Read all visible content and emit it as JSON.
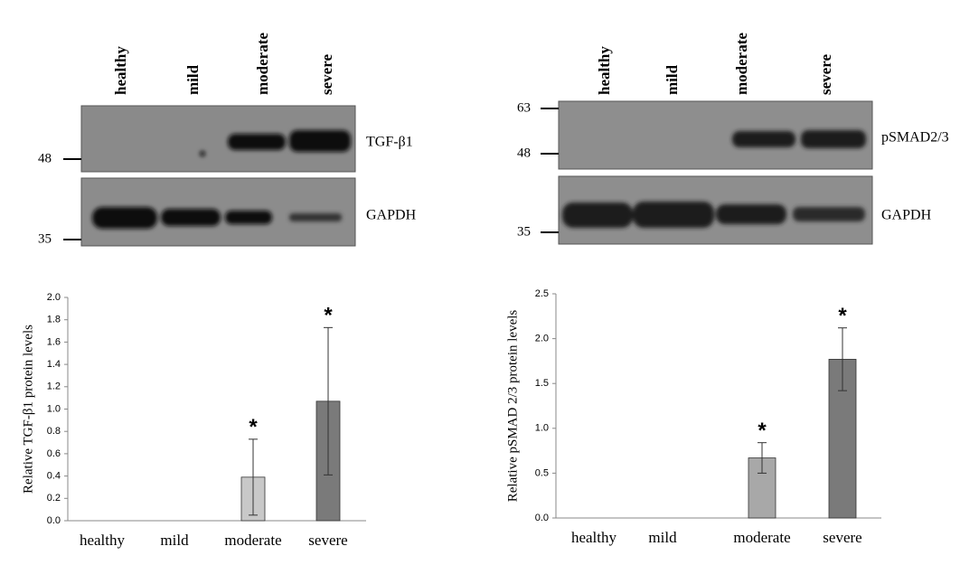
{
  "blots": [
    {
      "lanes": [
        "healthy",
        "mild",
        "moderate",
        "severe"
      ],
      "markers": [
        48,
        35
      ],
      "bands": [
        "TGF-β1",
        "GAPDH"
      ]
    },
    {
      "lanes": [
        "healthy",
        "mild",
        "moderate",
        "severe"
      ],
      "markers": [
        63,
        48,
        35
      ],
      "bands": [
        "pSMAD2/3",
        "GAPDH"
      ]
    }
  ],
  "chart_data": [
    {
      "type": "bar",
      "y_label": "Relative TGF-β1 protein levels",
      "categories": [
        "healthy",
        "mild",
        "moderate",
        "severe"
      ],
      "values": [
        0,
        0,
        0.39,
        1.07
      ],
      "errors": [
        0,
        0,
        0.34,
        0.66
      ],
      "colors": [
        "#c8c8c8",
        "#c8c8c8",
        "#c8c8c8",
        "#7a7a7a"
      ],
      "significance_labels": [
        null,
        null,
        "*",
        "*"
      ],
      "ylim": [
        0,
        2
      ],
      "yticks": [
        {
          "value": 0,
          "label": "0.0"
        },
        0.2,
        0.4,
        0.6,
        0.8,
        {
          "value": 1,
          "label": "1.0"
        },
        1.2,
        1.4,
        1.6,
        1.8,
        {
          "value": 2,
          "label": "2.0"
        }
      ]
    },
    {
      "type": "bar",
      "y_label": "Relative pSMAD 2/3 protein levels",
      "categories": [
        "healthy",
        "mild",
        "moderate",
        "severe"
      ],
      "values": [
        0,
        0,
        0.67,
        1.77
      ],
      "errors": [
        0,
        0,
        0.17,
        0.35
      ],
      "colors": [
        "#a8a8a8",
        "#a8a8a8",
        "#a8a8a8",
        "#7a7a7a"
      ],
      "significance_labels": [
        null,
        null,
        "*",
        "*"
      ],
      "ylim": [
        0,
        2.5
      ],
      "yticks": [
        {
          "value": 0,
          "label": "0.0"
        },
        0.5,
        {
          "value": 1,
          "label": "1.0"
        },
        1.5,
        {
          "value": 2,
          "label": "2.0"
        },
        2.5
      ]
    }
  ]
}
